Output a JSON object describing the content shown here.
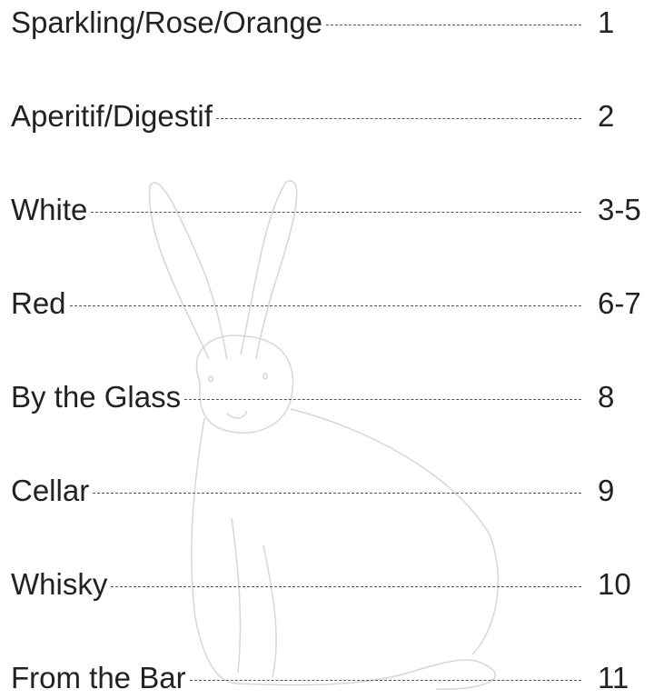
{
  "items": [
    {
      "label": "Sparkling/Rose/Orange",
      "page": "1"
    },
    {
      "label": "Aperitif/Digestif",
      "page": "2"
    },
    {
      "label": "White",
      "page": "3-5"
    },
    {
      "label": "Red",
      "page": "6-7"
    },
    {
      "label": "By the Glass",
      "page": "8"
    },
    {
      "label": "Cellar",
      "page": "9"
    },
    {
      "label": "Whisky",
      "page": "10"
    },
    {
      "label": "From the Bar",
      "page": "11"
    }
  ]
}
